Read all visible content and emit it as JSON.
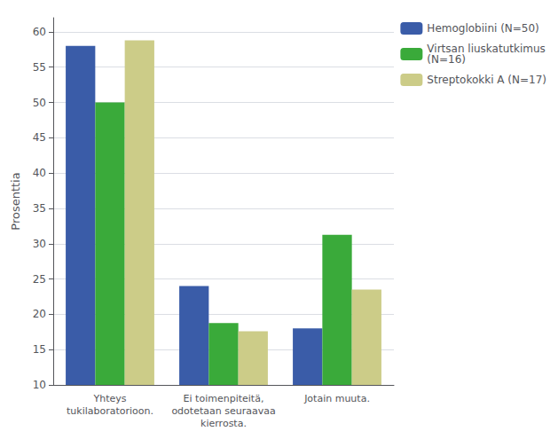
{
  "chart_data": {
    "type": "bar",
    "categories": [
      "Yhteys\ntukilaboratorioon.",
      "Ei toimenpiteitä,\nodotetaan seuraavaa\nkierrosta.",
      "Jotain muuta."
    ],
    "series": [
      {
        "name": "Hemoglobiini (N=50)",
        "values": [
          58.0,
          24.0,
          18.0
        ],
        "color": "#3a5ca8"
      },
      {
        "name": "Virtsan liuskatutkimus\n(N=16)",
        "values": [
          50.0,
          18.75,
          31.25
        ],
        "color": "#3aaa3a"
      },
      {
        "name": "Streptokokki A (N=17)",
        "values": [
          58.8,
          17.6,
          23.5
        ],
        "color": "#cccc88"
      }
    ],
    "ylabel": "Prosenttia",
    "ylim": [
      10,
      62
    ],
    "yticks": [
      10,
      15,
      20,
      25,
      30,
      35,
      40,
      45,
      50,
      55,
      60
    ],
    "grid": true,
    "legend": "upper right"
  }
}
